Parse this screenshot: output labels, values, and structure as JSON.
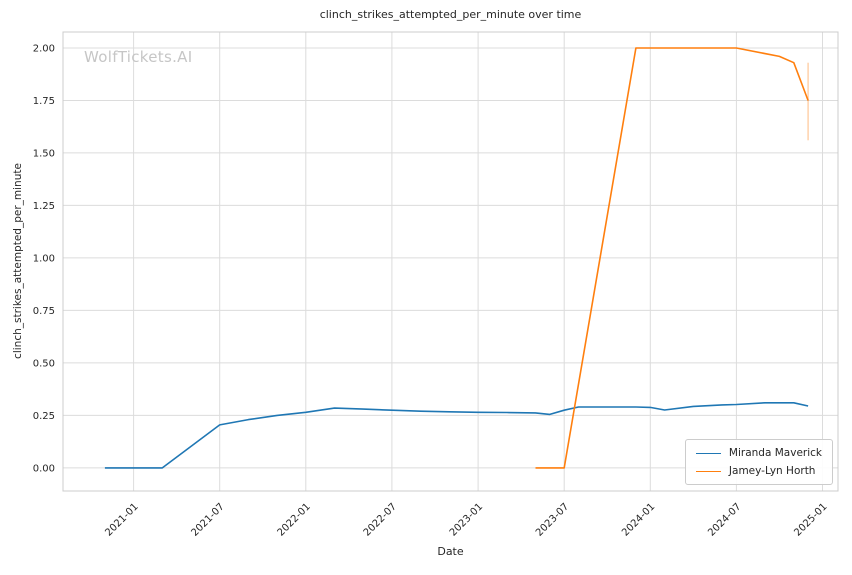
{
  "watermark": "WolfTickets.AI",
  "chart_data": {
    "type": "line",
    "title": "clinch_strikes_attempted_per_minute over time",
    "xlabel": "Date",
    "ylabel": "clinch_strikes_attempted_per_minute",
    "grid": true,
    "legend_position": "lower right",
    "axes": {
      "xlim": [
        2020.59,
        2025.09
      ],
      "ylim": [
        -0.11,
        2.076
      ],
      "xticks": [
        {
          "value": "2021-01",
          "label": "2021-01"
        },
        {
          "value": "2021-07",
          "label": "2021-07"
        },
        {
          "value": "2022-01",
          "label": "2022-01"
        },
        {
          "value": "2022-07",
          "label": "2022-07"
        },
        {
          "value": "2023-01",
          "label": "2023-01"
        },
        {
          "value": "2023-07",
          "label": "2023-07"
        },
        {
          "value": "2024-01",
          "label": "2024-01"
        },
        {
          "value": "2024-07",
          "label": "2024-07"
        },
        {
          "value": "2025-01",
          "label": "2025-01"
        }
      ],
      "yticks": [
        {
          "value": 0.0,
          "label": "0.00"
        },
        {
          "value": 0.25,
          "label": "0.25"
        },
        {
          "value": 0.5,
          "label": "0.50"
        },
        {
          "value": 0.75,
          "label": "0.75"
        },
        {
          "value": 1.0,
          "label": "1.00"
        },
        {
          "value": 1.25,
          "label": "1.25"
        },
        {
          "value": 1.5,
          "label": "1.50"
        },
        {
          "value": 1.75,
          "label": "1.75"
        },
        {
          "value": 2.0,
          "label": "2.00"
        }
      ]
    },
    "style": {
      "background": "#ffffff",
      "grid_color": "#dcdcdc",
      "spine_color": "#cccccc",
      "tick_color": "#262626",
      "watermark_color": "#c6c6c6"
    },
    "series": [
      {
        "name": "Miranda Maverick",
        "color": "#1f77b4",
        "points": [
          {
            "date": "2020-11",
            "value": 0.0
          },
          {
            "date": "2021-01",
            "value": 0.0
          },
          {
            "date": "2021-03",
            "value": 0.0
          },
          {
            "date": "2021-07",
            "value": 0.205
          },
          {
            "date": "2021-09",
            "value": 0.23
          },
          {
            "date": "2021-11",
            "value": 0.25
          },
          {
            "date": "2022-01",
            "value": 0.265
          },
          {
            "date": "2022-03",
            "value": 0.285
          },
          {
            "date": "2022-05",
            "value": 0.28
          },
          {
            "date": "2022-07",
            "value": 0.275
          },
          {
            "date": "2022-09",
            "value": 0.27
          },
          {
            "date": "2022-11",
            "value": 0.267
          },
          {
            "date": "2023-01",
            "value": 0.265
          },
          {
            "date": "2023-03",
            "value": 0.264
          },
          {
            "date": "2023-05",
            "value": 0.262
          },
          {
            "date": "2023-06",
            "value": 0.255
          },
          {
            "date": "2023-07",
            "value": 0.275
          },
          {
            "date": "2023-08",
            "value": 0.29
          },
          {
            "date": "2023-10",
            "value": 0.29
          },
          {
            "date": "2023-12",
            "value": 0.29
          },
          {
            "date": "2024-01",
            "value": 0.288
          },
          {
            "date": "2024-02",
            "value": 0.276
          },
          {
            "date": "2024-04",
            "value": 0.293
          },
          {
            "date": "2024-06",
            "value": 0.3
          },
          {
            "date": "2024-07",
            "value": 0.302
          },
          {
            "date": "2024-09",
            "value": 0.31
          },
          {
            "date": "2024-11",
            "value": 0.31
          },
          {
            "date": "2024-12",
            "value": 0.295
          }
        ]
      },
      {
        "name": "Jamey-Lyn Horth",
        "color": "#ff7f0e",
        "points": [
          {
            "date": "2023-05",
            "value": 0.0
          },
          {
            "date": "2023-07",
            "value": 0.0
          },
          {
            "date": "2023-12",
            "value": 2.0
          },
          {
            "date": "2024-02",
            "value": 2.0
          },
          {
            "date": "2024-05",
            "value": 2.0
          },
          {
            "date": "2024-07",
            "value": 2.0
          },
          {
            "date": "2024-10",
            "value": 1.96
          },
          {
            "date": "2024-11",
            "value": 1.93
          },
          {
            "date": "2024-12",
            "value": 1.75
          }
        ],
        "error_bar": {
          "date": "2024-12",
          "min": 1.56,
          "max": 1.93
        }
      }
    ]
  }
}
